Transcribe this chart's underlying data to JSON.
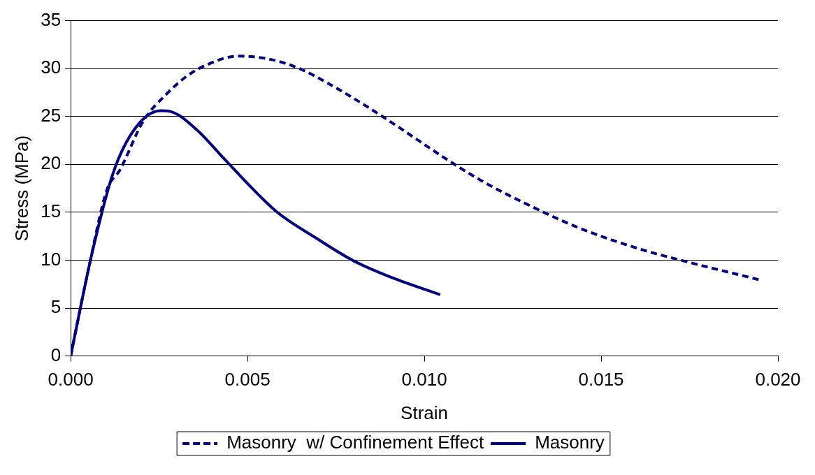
{
  "chart_data": {
    "type": "line",
    "xlabel": "Strain",
    "ylabel": "Stress (MPa)",
    "xlim": [
      0,
      0.02
    ],
    "xticks": [
      {
        "value": 0,
        "label": "0.000"
      },
      {
        "value": 0.005,
        "label": "0.005"
      },
      {
        "value": 0.01,
        "label": "0.010"
      },
      {
        "value": 0.015,
        "label": "0.015"
      },
      {
        "value": 0.02,
        "label": "0.020"
      }
    ],
    "ylim": [
      0,
      35
    ],
    "yticks": [
      0,
      5,
      10,
      15,
      20,
      25,
      30,
      35
    ],
    "grid": "y",
    "legend": "bottom",
    "marker": "none",
    "series": [
      {
        "name": "Masonry  w/ Confinement Effect",
        "color": "#000080",
        "line_style": "dashed",
        "x": [
          0,
          0.0005,
          0.00103,
          0.00139,
          0.00205,
          0.0027,
          0.00328,
          0.00385,
          0.00473,
          0.0056,
          0.00647,
          0.00726,
          0.00835,
          0.00943,
          0.01052,
          0.01166,
          0.01332,
          0.01442,
          0.01615,
          0.01725,
          0.01953
        ],
        "values": [
          0,
          9,
          17.4,
          19.4,
          24.5,
          27.3,
          29.2,
          30.4,
          31.3,
          31,
          30,
          28.5,
          26.1,
          23.5,
          20.8,
          18.2,
          15.1,
          13.3,
          11.1,
          10,
          7.9
        ]
      },
      {
        "name": "Masonry",
        "color": "#000080",
        "line_style": "solid",
        "x": [
          0,
          0.00059,
          0.00121,
          0.00183,
          0.00255,
          0.00284,
          0.00357,
          0.00436,
          0.00581,
          0.0069,
          0.00799,
          0.00907,
          0.01045
        ],
        "values": [
          0,
          10.5,
          19.2,
          23.8,
          25.6,
          25.5,
          23.6,
          20.5,
          15.1,
          12.4,
          9.95,
          8.2,
          6.4
        ]
      }
    ]
  }
}
